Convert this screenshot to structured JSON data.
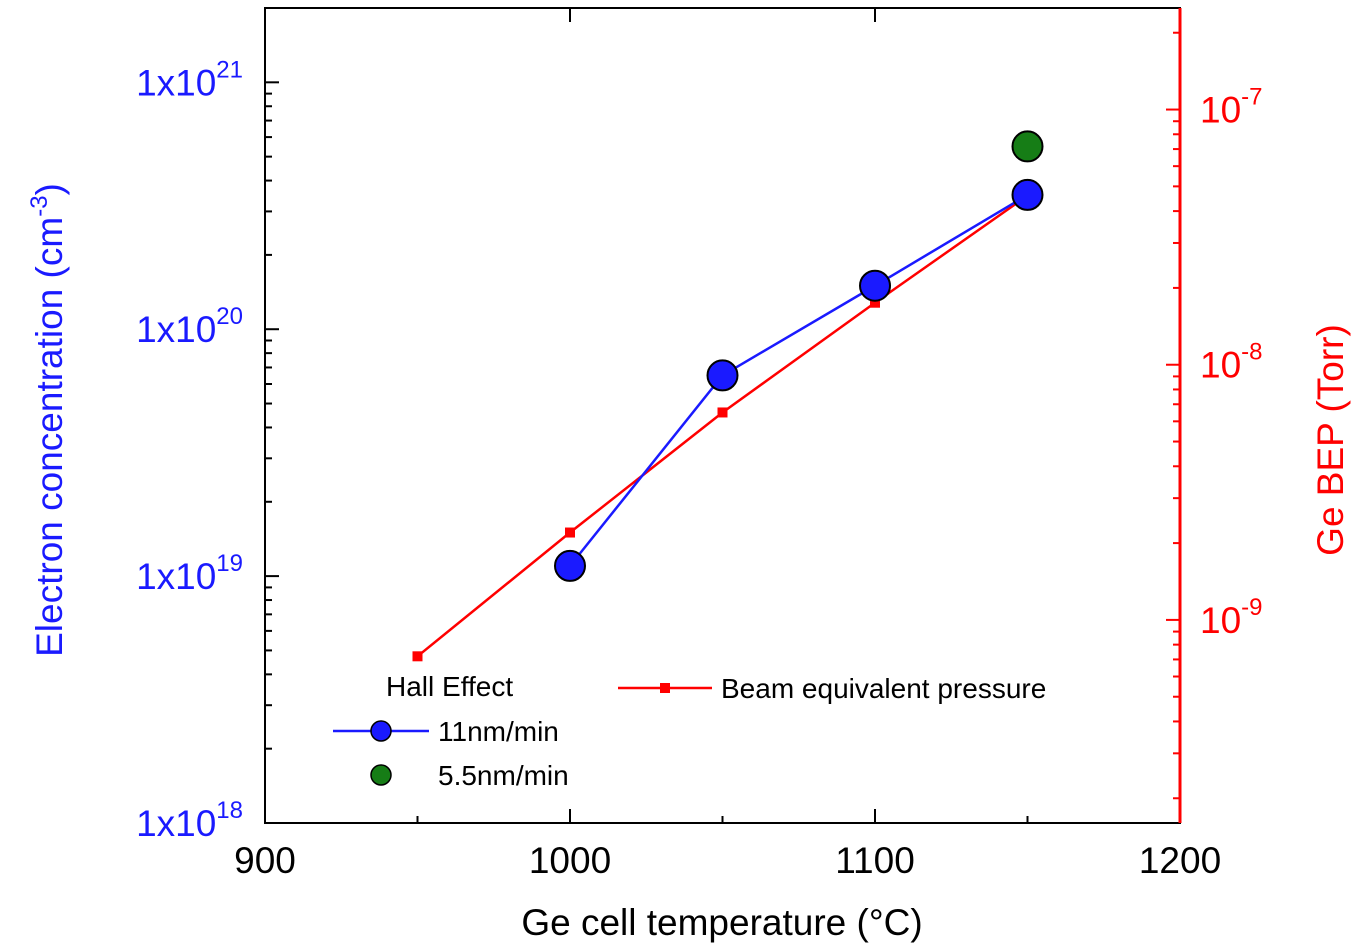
{
  "chart_data": {
    "type": "line",
    "xlabel": "Ge cell temperature (°C)",
    "ylabel_left": "Electron concentration (cm",
    "ylabel_left_sup": "-3",
    "ylabel_left_close": ")",
    "ylabel_right": "Ge BEP (Torr)",
    "xlim": [
      900,
      1200
    ],
    "x_ticks": [
      {
        "value": 900,
        "label": "900"
      },
      {
        "value": 1000,
        "label": "1000"
      },
      {
        "value": 1100,
        "label": "1100"
      },
      {
        "value": 1200,
        "label": "1200"
      }
    ],
    "y_left": {
      "scale": "log",
      "lim": [
        1e+18,
        2e+21
      ],
      "color": "#1a1aff",
      "ticks": [
        {
          "value": 1e+18,
          "base": "1x10",
          "exp": "18"
        },
        {
          "value": 1e+19,
          "base": "1x10",
          "exp": "19"
        },
        {
          "value": 1e+20,
          "base": "1x10",
          "exp": "20"
        },
        {
          "value": 1e+21,
          "base": "1x10",
          "exp": "21"
        }
      ]
    },
    "y_right": {
      "scale": "log",
      "lim": [
        1.6e-10,
        2.5e-07
      ],
      "color": "#ff0000",
      "ticks": [
        {
          "value": 1e-09,
          "base": "10",
          "exp": "-9"
        },
        {
          "value": 1e-08,
          "base": "10",
          "exp": "-8"
        },
        {
          "value": 1e-07,
          "base": "10",
          "exp": "-7"
        }
      ]
    },
    "legend_title": "Hall Effect",
    "series": [
      {
        "name": "11nm/min",
        "axis": "left",
        "color": "#1a1aff",
        "marker": "circle",
        "line": true,
        "x": [
          1000,
          1050,
          1100,
          1150
        ],
        "y": [
          1.1e+19,
          6.5e+19,
          1.5e+20,
          3.5e+20
        ]
      },
      {
        "name": "5.5nm/min",
        "axis": "left",
        "color": "#167d16",
        "marker": "circle",
        "line": false,
        "x": [
          1150
        ],
        "y": [
          5.5e+20
        ]
      },
      {
        "name": "Beam equivalent pressure",
        "axis": "right",
        "color": "#ff0000",
        "marker": "square",
        "line": true,
        "x": [
          950,
          1000,
          1050,
          1100,
          1150
        ],
        "y": [
          7.2e-10,
          2.2e-09,
          6.5e-09,
          1.75e-08,
          4.6e-08
        ]
      }
    ]
  }
}
